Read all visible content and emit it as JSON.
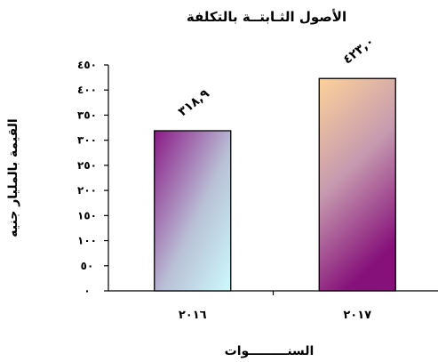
{
  "chart_data": {
    "type": "bar",
    "title": "الأصول الثـابتــة بالتكلفة",
    "xlabel": "السنـــــــــوات",
    "ylabel": "القيمة بالمليار جنيه",
    "categories": [
      "٢٠١٦",
      "٢٠١٧"
    ],
    "values": [
      318.9,
      423.0
    ],
    "data_labels": [
      "٣١٨,٩",
      "٤٢٣,٠"
    ],
    "ylim": [
      0,
      450
    ],
    "yticks": [
      {
        "value": 0,
        "label": "٠"
      },
      {
        "value": 50,
        "label": "٥٠"
      },
      {
        "value": 100,
        "label": "١٠٠"
      },
      {
        "value": 150,
        "label": "١٥٠"
      },
      {
        "value": 200,
        "label": "٢٠٠"
      },
      {
        "value": 250,
        "label": "٢٥٠"
      },
      {
        "value": 300,
        "label": "٣٠٠"
      },
      {
        "value": 350,
        "label": "٣٥٠"
      },
      {
        "value": 400,
        "label": "٤٠٠"
      },
      {
        "value": 450,
        "label": "٤٥٠"
      }
    ],
    "grid": false,
    "legend": "none",
    "bar_gradients": [
      {
        "top": "#8a1a86",
        "mid": "#b9c0d6",
        "bottom": "#ccfafc"
      },
      {
        "top": "#fcd29a",
        "mid": "#c69aaf",
        "bottom": "#86117a"
      }
    ]
  }
}
